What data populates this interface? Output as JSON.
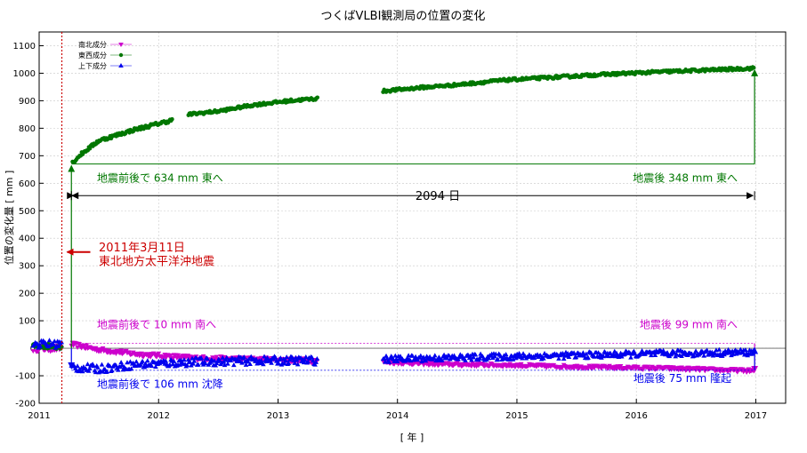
{
  "chart_data": {
    "type": "scatter",
    "title": "つくばVLBI観測局の位置の変化",
    "xlabel": "[ 年 ]",
    "ylabel": "位置の変化量 [ mm ]",
    "xlim": [
      2011.0,
      2017.25
    ],
    "ylim": [
      -200,
      1150
    ],
    "xticks": [
      "2011",
      "2012",
      "2013",
      "2014",
      "2015",
      "2016",
      "2017"
    ],
    "yticks": [
      -200,
      -100,
      0,
      100,
      200,
      300,
      400,
      500,
      600,
      700,
      800,
      900,
      1000,
      1100
    ],
    "grid": true,
    "legend_position": "top-left",
    "series": [
      {
        "name": "南北成分",
        "marker": "triangle-down",
        "color": "#cc00cc",
        "segments": [
          {
            "x": [
              2010.95,
              2011.19
            ],
            "level": [
              0,
              0
            ],
            "scatter": 12
          },
          {
            "x": [
              2011.27,
              2011.5,
              2011.8,
              2012.3,
              2012.8,
              2013.33
            ],
            "level": [
              15,
              -5,
              -20,
              -35,
              -40,
              -45
            ],
            "scatter": 8
          },
          {
            "x": [
              2013.88,
              2014.4,
              2015.0,
              2015.6,
              2016.2,
              2016.99
            ],
            "level": [
              -50,
              -58,
              -62,
              -68,
              -72,
              -82
            ],
            "scatter": 6
          }
        ]
      },
      {
        "name": "東西成分",
        "marker": "circle",
        "color": "#007700",
        "segments": [
          {
            "x": [
              2010.95,
              2011.19
            ],
            "level": [
              8,
              8
            ],
            "scatter": 10
          },
          {
            "x": [
              2011.28,
              2011.35,
              2011.5,
              2011.8,
              2012.12
            ],
            "level": [
              675,
              705,
              755,
              795,
              830
            ],
            "scatter": 6
          },
          {
            "x": [
              2012.25,
              2012.5,
              2012.8,
              2013.1,
              2013.33
            ],
            "level": [
              850,
              862,
              885,
              900,
              908
            ],
            "scatter": 5
          },
          {
            "x": [
              2013.88,
              2014.2,
              2014.5,
              2014.9,
              2015.3,
              2015.7,
              2016.2,
              2016.99
            ],
            "level": [
              935,
              948,
              958,
              975,
              985,
              995,
              1005,
              1018
            ],
            "scatter": 5
          }
        ]
      },
      {
        "name": "上下成分",
        "marker": "triangle-up",
        "color": "#0000ee",
        "segments": [
          {
            "x": [
              2010.95,
              2011.19
            ],
            "level": [
              15,
              15
            ],
            "scatter": 15
          },
          {
            "x": [
              2011.27,
              2011.5,
              2011.8,
              2012.3,
              2012.8,
              2013.33
            ],
            "level": [
              -70,
              -75,
              -60,
              -50,
              -45,
              -45
            ],
            "scatter": 15
          },
          {
            "x": [
              2013.88,
              2014.4,
              2015.0,
              2015.6,
              2016.2,
              2016.99
            ],
            "level": [
              -40,
              -35,
              -30,
              -25,
              -20,
              -15
            ],
            "scatter": 12
          }
        ]
      }
    ],
    "earthquake": {
      "x": 2011.19,
      "label_line1": "2011年3月11日",
      "label_line2": "東北地方太平洋沖地震",
      "color": "#cc0000",
      "arrow_y": 350
    },
    "annotations": {
      "ew_before": {
        "text": "地震前後で 634 mm 東へ",
        "color": "#007700"
      },
      "ew_after": {
        "text": "地震後 348 mm 東へ",
        "color": "#007700"
      },
      "span": {
        "text": "2094 日"
      },
      "ns_before": {
        "text": "地震前後で 10 mm 南へ",
        "color": "#cc00cc"
      },
      "ns_after": {
        "text": "地震後 99 mm 南へ",
        "color": "#cc00cc"
      },
      "ud_before": {
        "text": "地震前後で 106 mm 沈降",
        "color": "#0000ee"
      },
      "ud_after": {
        "text": "地震後 75 mm 隆起",
        "color": "#0000ee"
      }
    },
    "reference_lines": {
      "ew_level": 670,
      "ns_level": 18,
      "ud_level": -80,
      "end_x": 2016.99,
      "start_x": 2011.27,
      "ew_end": 1018,
      "ns_end": -80,
      "ud_end": -5
    }
  }
}
